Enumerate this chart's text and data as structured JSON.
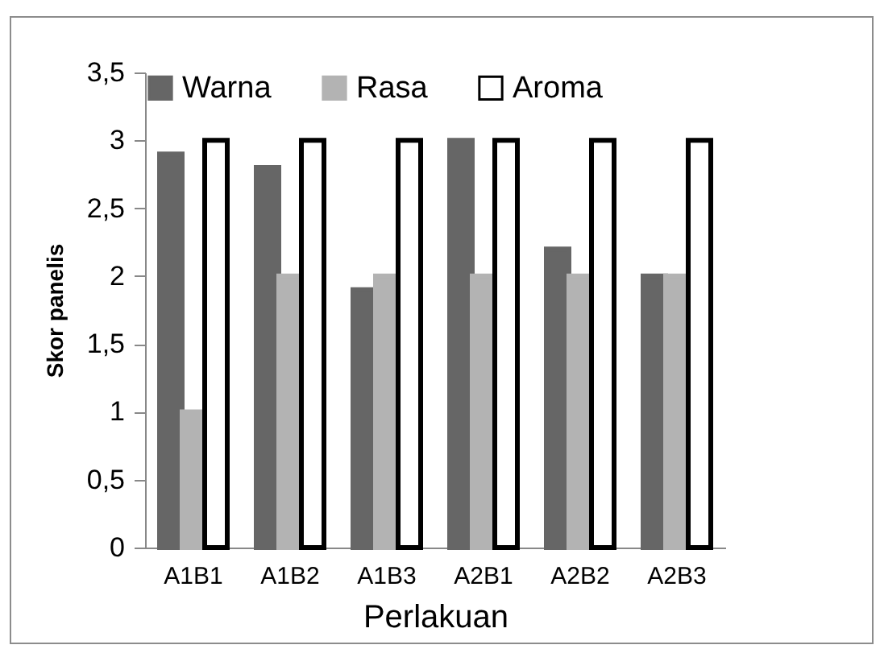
{
  "chart_data": {
    "type": "bar",
    "xlabel": "Perlakuan",
    "ylabel": "Skor panelis",
    "categories": [
      "A1B1",
      "A1B2",
      "A1B3",
      "A2B1",
      "A2B2",
      "A2B3"
    ],
    "series": [
      {
        "name": "Warna",
        "color": "#666666",
        "values": [
          2.9,
          2.8,
          1.9,
          3,
          2.2,
          2
        ]
      },
      {
        "name": "Rasa",
        "color": "#b3b3b3",
        "values": [
          1,
          2,
          2,
          2,
          2,
          2
        ]
      },
      {
        "name": "Aroma",
        "color": "#ffffff",
        "values": [
          3,
          3,
          3,
          3,
          3,
          3
        ]
      }
    ],
    "ylim": [
      0,
      3.5
    ],
    "yticks": [
      0,
      {
        "value": 0.5,
        "label": "0,5"
      },
      1,
      {
        "value": 1.5,
        "label": "1,5"
      },
      2,
      {
        "value": 2.5,
        "label": "2,5"
      },
      3,
      {
        "value": 3.5,
        "label": "3,5"
      }
    ],
    "grid": false,
    "legend": "top"
  }
}
